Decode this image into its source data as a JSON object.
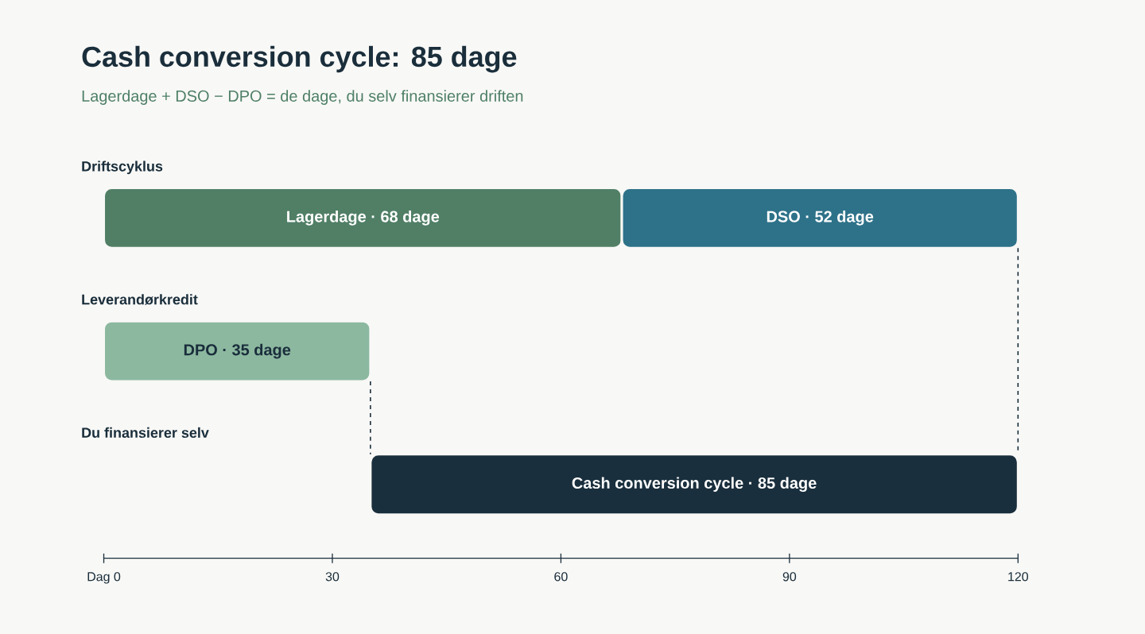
{
  "chart_data": {
    "type": "bar",
    "orientation": "horizontal",
    "title": "Cash conversion cycle: 85 dage",
    "subtitle": "Lagerdage + DSO − DPO = de dage, du selv finansierer driften",
    "categories": [
      "Driftscyklus",
      "Leverandørkredit",
      "Du finansierer selv"
    ],
    "series": [
      {
        "values": [
          68,
          35,
          85
        ],
        "base": [
          0,
          0,
          35
        ],
        "colors": [
          "#507f66",
          "#8cb8a0",
          "#1a2f3d"
        ],
        "value_labels": [
          "Lagerdage · 68 dage",
          "DPO · 35 dage",
          "Cash conversion cycle · 85 dage"
        ]
      },
      {
        "values": [
          52,
          null,
          null
        ],
        "base": [
          68,
          null,
          null
        ],
        "colors": [
          "#2e7289",
          null,
          null
        ],
        "value_labels": [
          "DSO · 52 dage",
          null,
          null
        ]
      }
    ],
    "xlim": [
      0,
      120
    ],
    "xticks": [
      {
        "value": 0,
        "label": "Dag 0"
      },
      30,
      60,
      90,
      120
    ],
    "ref_lines": [
      {
        "axis": "x",
        "value": 35,
        "color": "#1a2f3d",
        "line_style": "dashed"
      },
      {
        "axis": "x",
        "value": 120,
        "color": "#1a2f3d",
        "line_style": "dashed"
      }
    ]
  }
}
